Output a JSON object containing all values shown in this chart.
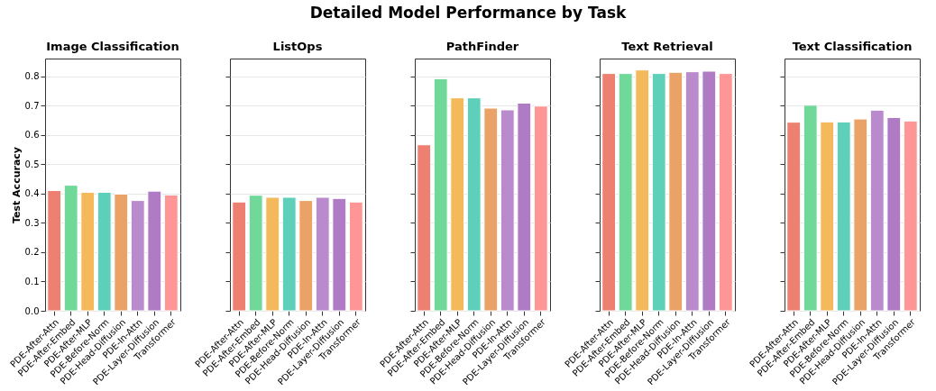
{
  "chart_data": [
    {
      "type": "other",
      "title": "Detailed Model Performance by Task"
    },
    {
      "type": "bar",
      "title": "Image Classification",
      "ylabel": "Test Accuracy",
      "categories": [
        "PDE-After-Attn",
        "PDE-After-Embed",
        "PDE-After-MLP",
        "PDE-Before-Norm",
        "PDE-Head-Diffusion",
        "PDE-In-Attn",
        "PDE-Layer-Diffusion",
        "Transformer"
      ],
      "values": [
        0.41,
        0.428,
        0.404,
        0.404,
        0.398,
        0.376,
        0.408,
        0.395
      ],
      "colors": [
        "#ed8070",
        "#70d99a",
        "#f3b95a",
        "#5ecfb9",
        "#eba267",
        "#b98acc",
        "#ae7bc4",
        "#ff9696"
      ],
      "ylim": [
        0,
        0.86
      ],
      "yticks": [
        {
          "value": 0,
          "label": "0.0"
        },
        0.1,
        0.2,
        0.3,
        0.4,
        0.5,
        0.6,
        0.7,
        0.8
      ],
      "grid": "y"
    },
    {
      "type": "bar",
      "title": "ListOps",
      "categories": [
        "PDE-After-Attn",
        "PDE-After-Embed",
        "PDE-After-MLP",
        "PDE-Before-Norm",
        "PDE-Head-Diffusion",
        "PDE-In-Attn",
        "PDE-Layer-Diffusion",
        "Transformer"
      ],
      "values": [
        0.371,
        0.394,
        0.387,
        0.387,
        0.376,
        0.387,
        0.383,
        0.371
      ],
      "colors": [
        "#ed8070",
        "#70d99a",
        "#f3b95a",
        "#5ecfb9",
        "#eba267",
        "#b98acc",
        "#ae7bc4",
        "#ff9696"
      ],
      "ylim": [
        0,
        0.86
      ],
      "yticks": [
        0,
        0.1,
        0.2,
        0.3,
        0.4,
        0.5,
        0.6,
        0.7,
        0.8
      ],
      "grid": "y",
      "tick_labels": "x"
    },
    {
      "type": "bar",
      "title": "PathFinder",
      "categories": [
        "PDE-After-Attn",
        "PDE-After-Embed",
        "PDE-After-MLP",
        "PDE-Before-Norm",
        "PDE-Head-Diffusion",
        "PDE-In-Attn",
        "PDE-Layer-Diffusion",
        "Transformer"
      ],
      "values": [
        0.566,
        0.791,
        0.726,
        0.726,
        0.691,
        0.685,
        0.708,
        0.698
      ],
      "colors": [
        "#ed8070",
        "#70d99a",
        "#f3b95a",
        "#5ecfb9",
        "#eba267",
        "#b98acc",
        "#ae7bc4",
        "#ff9696"
      ],
      "ylim": [
        0,
        0.86
      ],
      "yticks": [
        0,
        0.1,
        0.2,
        0.3,
        0.4,
        0.5,
        0.6,
        0.7,
        0.8
      ],
      "grid": "y",
      "tick_labels": "x"
    },
    {
      "type": "bar",
      "title": "Text Retrieval",
      "categories": [
        "PDE-After-Attn",
        "PDE-After-Embed",
        "PDE-After-MLP",
        "PDE-Before-Norm",
        "PDE-Head-Diffusion",
        "PDE-In-Attn",
        "PDE-Layer-Diffusion",
        "Transformer"
      ],
      "values": [
        0.809,
        0.809,
        0.821,
        0.809,
        0.813,
        0.815,
        0.817,
        0.809
      ],
      "colors": [
        "#ed8070",
        "#70d99a",
        "#f3b95a",
        "#5ecfb9",
        "#eba267",
        "#b98acc",
        "#ae7bc4",
        "#ff9696"
      ],
      "ylim": [
        0,
        0.86
      ],
      "yticks": [
        0,
        0.1,
        0.2,
        0.3,
        0.4,
        0.5,
        0.6,
        0.7,
        0.8
      ],
      "grid": "y",
      "tick_labels": "x"
    },
    {
      "type": "bar",
      "title": "Text Classification",
      "categories": [
        "PDE-After-Attn",
        "PDE-After-Embed",
        "PDE-After-MLP",
        "PDE-Before-Norm",
        "PDE-Head-Diffusion",
        "PDE-In-Attn",
        "PDE-Layer-Diffusion",
        "Transformer"
      ],
      "values": [
        0.643,
        0.701,
        0.644,
        0.644,
        0.654,
        0.684,
        0.659,
        0.647
      ],
      "colors": [
        "#ed8070",
        "#70d99a",
        "#f3b95a",
        "#5ecfb9",
        "#eba267",
        "#b98acc",
        "#ae7bc4",
        "#ff9696"
      ],
      "ylim": [
        0,
        0.86
      ],
      "yticks": [
        0,
        0.1,
        0.2,
        0.3,
        0.4,
        0.5,
        0.6,
        0.7,
        0.8
      ],
      "grid": "y",
      "tick_labels": "x"
    }
  ]
}
